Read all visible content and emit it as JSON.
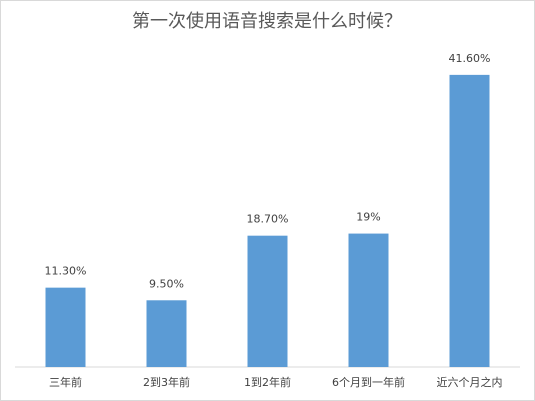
{
  "chart_data": {
    "type": "bar",
    "title": "第一次使用语音搜索是什么时候？",
    "categories": [
      "三年前",
      "2到3年前",
      "1到2年前",
      "6个月到一年前",
      "近六个月之内"
    ],
    "values": [
      11.3,
      9.5,
      18.7,
      19,
      41.6
    ],
    "value_labels": [
      "11.30%",
      "9.50%",
      "18.70%",
      "19%",
      "41.60%"
    ],
    "color": "#5b9bd5",
    "ylim": [
      0,
      45
    ]
  }
}
